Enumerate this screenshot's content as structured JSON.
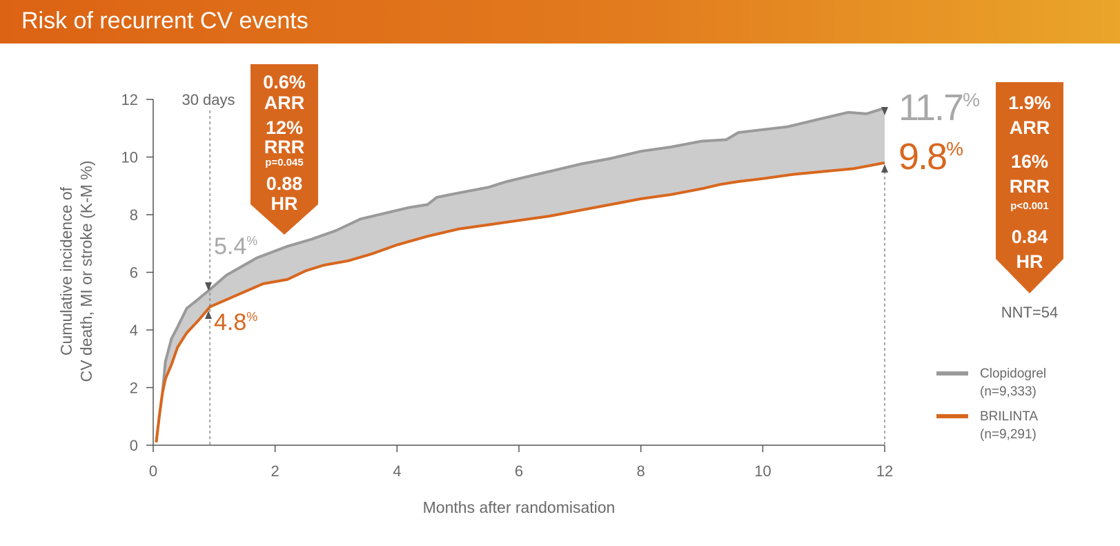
{
  "header": {
    "title": "Risk of recurrent CV events"
  },
  "chart_data": {
    "type": "line",
    "xlabel": "Months after randomisation",
    "ylabel_lines": [
      "Cumulative incidence of",
      "CV death, MI or stroke (K-M %)"
    ],
    "xlim": [
      0,
      12
    ],
    "ylim": [
      0,
      12
    ],
    "x_ticks": [
      0,
      2,
      4,
      6,
      8,
      10,
      12
    ],
    "y_ticks": [
      0,
      2,
      4,
      6,
      8,
      10,
      12
    ],
    "grid": false,
    "legend_position": "right",
    "series": [
      {
        "name": "Clopidogrel",
        "n_label": "(n=9,333)",
        "color": "#9a9a9a",
        "x": [
          0.05,
          0.1,
          0.15,
          0.2,
          0.3,
          0.4,
          0.55,
          0.7,
          0.93,
          1.2,
          1.7,
          2.2,
          2.6,
          3.0,
          3.4,
          3.8,
          4.2,
          4.5,
          4.65,
          5.0,
          5.5,
          5.8,
          6.2,
          6.6,
          7.0,
          7.5,
          8.0,
          8.5,
          9.0,
          9.4,
          9.6,
          10.0,
          10.4,
          11.0,
          11.4,
          11.7,
          12.0
        ],
        "y": [
          0.1,
          1.0,
          1.8,
          2.9,
          3.7,
          4.1,
          4.75,
          5.0,
          5.4,
          5.9,
          6.5,
          6.9,
          7.15,
          7.45,
          7.85,
          8.05,
          8.25,
          8.35,
          8.6,
          8.75,
          8.95,
          9.15,
          9.35,
          9.55,
          9.75,
          9.95,
          10.2,
          10.35,
          10.55,
          10.6,
          10.85,
          10.95,
          11.05,
          11.35,
          11.55,
          11.5,
          11.7
        ]
      },
      {
        "name": "BRILINTA",
        "n_label": "(n=9,291)",
        "color": "#d8671e",
        "x": [
          0.05,
          0.1,
          0.15,
          0.2,
          0.3,
          0.4,
          0.55,
          0.75,
          0.93,
          1.2,
          1.8,
          2.2,
          2.5,
          2.8,
          3.2,
          3.6,
          4.0,
          4.5,
          5.0,
          5.5,
          6.0,
          6.5,
          7.0,
          7.5,
          8.0,
          8.5,
          9.0,
          9.3,
          9.6,
          10.0,
          10.5,
          11.0,
          11.5,
          12.0
        ],
        "y": [
          0.1,
          1.0,
          1.8,
          2.3,
          2.8,
          3.4,
          3.9,
          4.35,
          4.8,
          5.05,
          5.6,
          5.75,
          6.05,
          6.25,
          6.4,
          6.65,
          6.95,
          7.25,
          7.5,
          7.65,
          7.8,
          7.95,
          8.15,
          8.35,
          8.55,
          8.7,
          8.9,
          9.05,
          9.15,
          9.25,
          9.4,
          9.5,
          9.6,
          9.8
        ]
      }
    ],
    "annotations": {
      "thirty_days": {
        "label": "30 days",
        "x": 0.93
      },
      "clopi_30d": {
        "value": "5.4",
        "suffix": "%"
      },
      "bril_30d": {
        "value": "4.8",
        "suffix": "%"
      },
      "clopi_12m": {
        "value": "11.7",
        "suffix": "%"
      },
      "bril_12m": {
        "value": "9.8",
        "suffix": "%"
      },
      "box_30d": {
        "arr_value": "0.6%",
        "arr_label": "ARR",
        "rrr_value": "12%",
        "rrr_label": "RRR",
        "p_value": "p=0.045",
        "hr_value": "0.88",
        "hr_label": "HR"
      },
      "box_12m": {
        "arr_value": "1.9%",
        "arr_label": "ARR",
        "rrr_value": "16%",
        "rrr_label": "RRR",
        "p_value": "p<0.001",
        "hr_value": "0.84",
        "hr_label": "HR"
      },
      "nnt": "NNT=54"
    }
  }
}
